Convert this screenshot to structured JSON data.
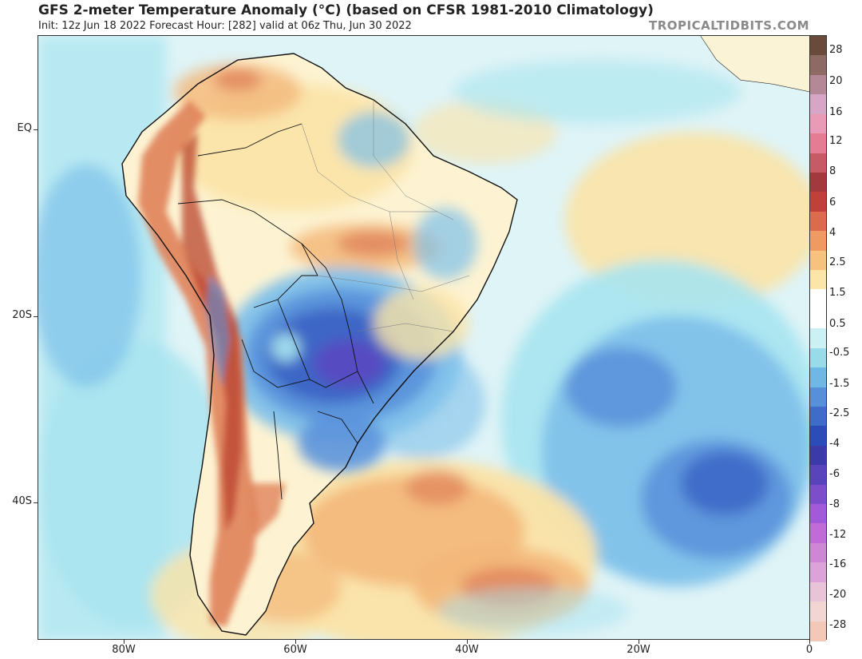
{
  "header": {
    "title": "GFS 2-meter Temperature Anomaly (°C) (based on CFSR 1981-2010 Climatology)",
    "subtitle": "Init: 12z Jun 18 2022   Forecast Hour: [282]   valid at 06z Thu, Jun 30 2022",
    "credit": "TROPICALTIDBITS.COM"
  },
  "map": {
    "lat_labels": [
      "EQ",
      "20S",
      "40S"
    ],
    "lon_labels": [
      "80W",
      "60W",
      "40W",
      "20W",
      "0"
    ],
    "colors": {
      "ocean_base": "#dff4f7",
      "land_base": "#fdf3d2",
      "warm_1": "#fbe3a6",
      "warm_2": "#f3b87a",
      "warm_3": "#e0825a",
      "warm_4": "#b9432f",
      "cool_1": "#a7e4ef",
      "cool_2": "#7ec0ea",
      "cool_3": "#5b93db",
      "cool_4": "#3a63c4",
      "cool_5": "#5a48bf",
      "border": "#111111"
    }
  },
  "colorbar": {
    "labels": [
      "28",
      "20",
      "16",
      "12",
      "8",
      "6",
      "4",
      "2.5",
      "1.5",
      "0.5",
      "-0.5",
      "-1.5",
      "-2.5",
      "-4",
      "-6",
      "-8",
      "-12",
      "-16",
      "-20",
      "-28"
    ],
    "colors": [
      "#6a4a3a",
      "#8e6a64",
      "#b48896",
      "#d7a6c6",
      "#e89ab7",
      "#e47d93",
      "#c65b66",
      "#a23a3d",
      "#c0403a",
      "#dc6a4d",
      "#ee9a62",
      "#f6c27d",
      "#fbe6a8",
      "#ffffff",
      "#ffffff",
      "#ccf1f4",
      "#98dcea",
      "#6fb8e5",
      "#5690d8",
      "#3f6cc9",
      "#2c4db7",
      "#3b3aa8",
      "#5944ba",
      "#7d4ec9",
      "#a35ad8",
      "#c06bd8",
      "#cf86d6",
      "#dba3d7",
      "#e9c3d8",
      "#f1d6d4",
      "#f3c8b8"
    ]
  }
}
